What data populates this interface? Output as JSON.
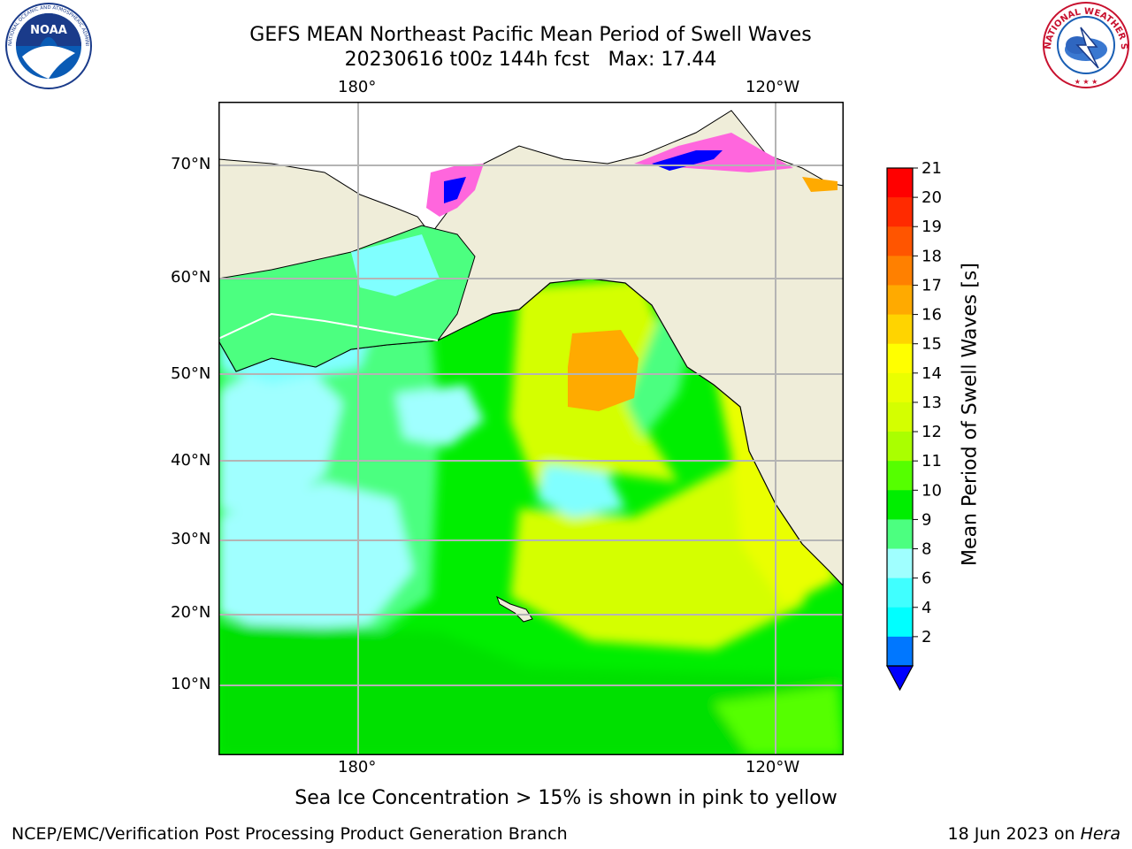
{
  "header": {
    "title_line1": "GEFS MEAN Northeast Pacific Mean Period of Swell Waves",
    "title_line2": "20230616 t00z 144h fcst   Max: 17.44"
  },
  "logos": {
    "left": "NOAA",
    "left_ring_text": "NATIONAL OCEANIC AND ATMOSPHERIC ADMINISTRATION · U.S. DEPARTMENT OF COMMERCE",
    "right_ring_text": "NATIONAL WEATHER SERVICE"
  },
  "map": {
    "lon_labels_top": [
      "180°",
      "120°W"
    ],
    "lon_labels_bottom": [
      "180°",
      "120°W"
    ],
    "lat_labels": [
      "70°N",
      "60°N",
      "50°N",
      "40°N",
      "30°N",
      "20°N",
      "10°N"
    ],
    "colors": {
      "land": "#efedd9",
      "grid": "#b4b4b4",
      "coast": "#000000"
    }
  },
  "colorbar": {
    "label": "Mean Period of Swell Waves [s]",
    "ticks": [
      "21",
      "20",
      "19",
      "18",
      "17",
      "16",
      "15",
      "14",
      "13",
      "12",
      "11",
      "10",
      "9",
      "8",
      "6",
      "4",
      "2"
    ],
    "colors": [
      "#ff0000",
      "#ff2a00",
      "#ff5500",
      "#ff8000",
      "#ffaa00",
      "#ffd400",
      "#ffff00",
      "#eaff00",
      "#d4ff00",
      "#aaff00",
      "#55ff00",
      "#00ee00",
      "#4cff80",
      "#a0ffff",
      "#40ffff",
      "#00ffff",
      "#0077ff"
    ],
    "extend_color": "#0000ff"
  },
  "notes": {
    "sea_ice": "Sea Ice Concentration > 15% is shown in pink to yellow"
  },
  "footer": {
    "left": "NCEP/EMC/Verification Post Processing Product Generation Branch",
    "right_date": "18 Jun 2023 on ",
    "right_host": "Hera"
  }
}
